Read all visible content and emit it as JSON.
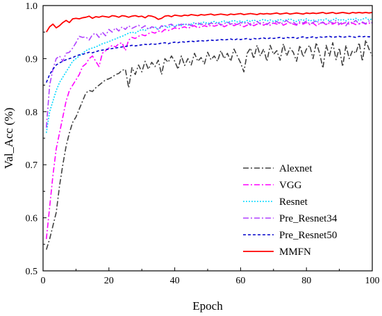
{
  "chart_data": {
    "type": "line",
    "title": "",
    "xlabel": "Epoch",
    "ylabel": "Val_Acc (%)",
    "xlim": [
      0,
      100
    ],
    "ylim": [
      0.5,
      1.0
    ],
    "xticks": [
      0,
      20,
      40,
      60,
      80,
      100
    ],
    "yticks": [
      0.5,
      0.6,
      0.7,
      0.8,
      0.9,
      1.0
    ],
    "x_tick_labels": [
      "0",
      "20",
      "40",
      "60",
      "80",
      "100"
    ],
    "y_tick_labels": [
      "0.5",
      "0.6",
      "0.7",
      "0.8",
      "0.9",
      "1.0"
    ],
    "grid": false,
    "legend_position": "bottom-right",
    "x": [
      1,
      2,
      3,
      4,
      5,
      6,
      7,
      8,
      9,
      10,
      11,
      12,
      13,
      14,
      15,
      16,
      17,
      18,
      19,
      20,
      21,
      22,
      23,
      24,
      25,
      26,
      27,
      28,
      29,
      30,
      31,
      32,
      33,
      34,
      35,
      36,
      37,
      38,
      39,
      40,
      41,
      42,
      43,
      44,
      45,
      46,
      47,
      48,
      49,
      50,
      51,
      52,
      53,
      54,
      55,
      56,
      57,
      58,
      59,
      60,
      61,
      62,
      63,
      64,
      65,
      66,
      67,
      68,
      69,
      70,
      71,
      72,
      73,
      74,
      75,
      76,
      77,
      78,
      79,
      80,
      81,
      82,
      83,
      84,
      85,
      86,
      87,
      88,
      89,
      90,
      91,
      92,
      93,
      94,
      95,
      96,
      97,
      98,
      99,
      100
    ],
    "series": [
      {
        "name": "Alexnet",
        "color": "#404040",
        "dash": "8,3,2,3",
        "values": [
          0.54,
          0.56,
          0.585,
          0.61,
          0.66,
          0.7,
          0.735,
          0.76,
          0.78,
          0.79,
          0.805,
          0.82,
          0.835,
          0.84,
          0.838,
          0.845,
          0.85,
          0.855,
          0.86,
          0.862,
          0.865,
          0.87,
          0.872,
          0.878,
          0.88,
          0.845,
          0.883,
          0.87,
          0.888,
          0.875,
          0.895,
          0.88,
          0.893,
          0.885,
          0.897,
          0.87,
          0.9,
          0.893,
          0.905,
          0.895,
          0.88,
          0.905,
          0.887,
          0.9,
          0.888,
          0.91,
          0.895,
          0.902,
          0.89,
          0.912,
          0.898,
          0.905,
          0.895,
          0.915,
          0.9,
          0.91,
          0.895,
          0.918,
          0.905,
          0.892,
          0.875,
          0.91,
          0.92,
          0.9,
          0.925,
          0.905,
          0.918,
          0.895,
          0.925,
          0.908,
          0.915,
          0.897,
          0.928,
          0.905,
          0.92,
          0.912,
          0.895,
          0.925,
          0.903,
          0.918,
          0.925,
          0.9,
          0.93,
          0.91,
          0.882,
          0.925,
          0.905,
          0.93,
          0.898,
          0.92,
          0.885,
          0.925,
          0.9,
          0.915,
          0.91,
          0.93,
          0.895,
          0.935,
          0.918,
          0.905
        ]
      },
      {
        "name": "VGG",
        "color": "#ff00ff",
        "dash": "8,3,2,3",
        "values": [
          0.56,
          0.62,
          0.68,
          0.73,
          0.76,
          0.79,
          0.82,
          0.84,
          0.85,
          0.86,
          0.87,
          0.885,
          0.89,
          0.9,
          0.905,
          0.895,
          0.885,
          0.91,
          0.915,
          0.92,
          0.925,
          0.922,
          0.928,
          0.93,
          0.915,
          0.935,
          0.94,
          0.938,
          0.942,
          0.945,
          0.943,
          0.947,
          0.95,
          0.948,
          0.952,
          0.95,
          0.955,
          0.953,
          0.955,
          0.958,
          0.956,
          0.958,
          0.96,
          0.957,
          0.96,
          0.962,
          0.958,
          0.96,
          0.962,
          0.96,
          0.963,
          0.961,
          0.963,
          0.965,
          0.96,
          0.963,
          0.965,
          0.962,
          0.965,
          0.963,
          0.96,
          0.963,
          0.966,
          0.962,
          0.965,
          0.967,
          0.963,
          0.966,
          0.963,
          0.967,
          0.965,
          0.968,
          0.963,
          0.966,
          0.968,
          0.965,
          0.963,
          0.967,
          0.965,
          0.968,
          0.964,
          0.967,
          0.962,
          0.966,
          0.968,
          0.964,
          0.967,
          0.965,
          0.968,
          0.963,
          0.966,
          0.968,
          0.965,
          0.967,
          0.964,
          0.966,
          0.968,
          0.965,
          0.967,
          0.966
        ]
      },
      {
        "name": "Resnet",
        "color": "#00d8ff",
        "dash": "2,2",
        "values": [
          0.76,
          0.8,
          0.82,
          0.84,
          0.855,
          0.865,
          0.875,
          0.885,
          0.895,
          0.9,
          0.905,
          0.91,
          0.915,
          0.918,
          0.92,
          0.922,
          0.925,
          0.928,
          0.93,
          0.932,
          0.935,
          0.937,
          0.94,
          0.942,
          0.945,
          0.948,
          0.95,
          0.948,
          0.952,
          0.955,
          0.953,
          0.957,
          0.958,
          0.96,
          0.955,
          0.96,
          0.962,
          0.958,
          0.963,
          0.96,
          0.965,
          0.962,
          0.966,
          0.963,
          0.965,
          0.968,
          0.964,
          0.967,
          0.969,
          0.966,
          0.968,
          0.97,
          0.967,
          0.969,
          0.971,
          0.968,
          0.97,
          0.972,
          0.969,
          0.971,
          0.968,
          0.972,
          0.97,
          0.973,
          0.97,
          0.972,
          0.974,
          0.971,
          0.973,
          0.97,
          0.972,
          0.974,
          0.971,
          0.973,
          0.975,
          0.972,
          0.97,
          0.974,
          0.972,
          0.975,
          0.971,
          0.973,
          0.97,
          0.974,
          0.972,
          0.975,
          0.971,
          0.973,
          0.976,
          0.972,
          0.974,
          0.971,
          0.975,
          0.973,
          0.976,
          0.972,
          0.974,
          0.977,
          0.973,
          0.975
        ]
      },
      {
        "name": "Pre_Resnet34",
        "color": "#b040ff",
        "dash": "8,3,2,3",
        "values": [
          0.77,
          0.85,
          0.88,
          0.9,
          0.905,
          0.895,
          0.91,
          0.912,
          0.92,
          0.93,
          0.942,
          0.94,
          0.941,
          0.935,
          0.945,
          0.948,
          0.94,
          0.95,
          0.943,
          0.955,
          0.95,
          0.958,
          0.952,
          0.96,
          0.955,
          0.962,
          0.957,
          0.96,
          0.963,
          0.958,
          0.962,
          0.955,
          0.96,
          0.958,
          0.955,
          0.962,
          0.96,
          0.963,
          0.965,
          0.96,
          0.962,
          0.965,
          0.963,
          0.966,
          0.962,
          0.965,
          0.968,
          0.964,
          0.966,
          0.963,
          0.967,
          0.965,
          0.968,
          0.963,
          0.966,
          0.969,
          0.965,
          0.967,
          0.964,
          0.968,
          0.966,
          0.969,
          0.963,
          0.967,
          0.97,
          0.965,
          0.968,
          0.964,
          0.969,
          0.966,
          0.97,
          0.965,
          0.968,
          0.972,
          0.966,
          0.969,
          0.964,
          0.97,
          0.967,
          0.971,
          0.965,
          0.968,
          0.972,
          0.966,
          0.969,
          0.964,
          0.97,
          0.967,
          0.972,
          0.965,
          0.969,
          0.962,
          0.97,
          0.967,
          0.972,
          0.965,
          0.969,
          0.966,
          0.971,
          0.967
        ]
      },
      {
        "name": "Pre_Resnet50",
        "color": "#0000cc",
        "dash": "4,3",
        "values": [
          0.855,
          0.87,
          0.88,
          0.888,
          0.892,
          0.895,
          0.898,
          0.9,
          0.902,
          0.905,
          0.907,
          0.908,
          0.91,
          0.912,
          0.911,
          0.913,
          0.915,
          0.916,
          0.917,
          0.918,
          0.919,
          0.92,
          0.921,
          0.922,
          0.923,
          0.924,
          0.925,
          0.924,
          0.925,
          0.926,
          0.927,
          0.926,
          0.928,
          0.927,
          0.928,
          0.929,
          0.93,
          0.928,
          0.93,
          0.931,
          0.93,
          0.932,
          0.931,
          0.932,
          0.933,
          0.932,
          0.933,
          0.934,
          0.933,
          0.934,
          0.935,
          0.934,
          0.935,
          0.936,
          0.935,
          0.936,
          0.937,
          0.935,
          0.937,
          0.936,
          0.937,
          0.938,
          0.936,
          0.938,
          0.937,
          0.938,
          0.939,
          0.937,
          0.939,
          0.938,
          0.939,
          0.94,
          0.938,
          0.94,
          0.939,
          0.94,
          0.938,
          0.94,
          0.941,
          0.939,
          0.94,
          0.941,
          0.939,
          0.941,
          0.94,
          0.941,
          0.942,
          0.94,
          0.941,
          0.942,
          0.94,
          0.941,
          0.942,
          0.941,
          0.94,
          0.942,
          0.941,
          0.942,
          0.941,
          0.942
        ]
      },
      {
        "name": "MMFN",
        "color": "#ff0000",
        "dash": "",
        "values": [
          0.95,
          0.96,
          0.965,
          0.958,
          0.962,
          0.968,
          0.972,
          0.968,
          0.975,
          0.976,
          0.975,
          0.977,
          0.978,
          0.98,
          0.976,
          0.979,
          0.978,
          0.98,
          0.979,
          0.978,
          0.981,
          0.98,
          0.978,
          0.981,
          0.98,
          0.978,
          0.98,
          0.981,
          0.979,
          0.98,
          0.977,
          0.981,
          0.98,
          0.978,
          0.974,
          0.976,
          0.98,
          0.981,
          0.979,
          0.982,
          0.981,
          0.98,
          0.982,
          0.981,
          0.983,
          0.982,
          0.981,
          0.983,
          0.982,
          0.983,
          0.984,
          0.982,
          0.983,
          0.984,
          0.983,
          0.982,
          0.984,
          0.983,
          0.984,
          0.985,
          0.983,
          0.984,
          0.985,
          0.984,
          0.983,
          0.985,
          0.984,
          0.985,
          0.984,
          0.985,
          0.986,
          0.984,
          0.985,
          0.986,
          0.984,
          0.985,
          0.986,
          0.985,
          0.984,
          0.986,
          0.985,
          0.986,
          0.985,
          0.986,
          0.987,
          0.985,
          0.986,
          0.987,
          0.985,
          0.986,
          0.987,
          0.986,
          0.985,
          0.987,
          0.986,
          0.987,
          0.986,
          0.987,
          0.986,
          0.987
        ]
      }
    ]
  }
}
